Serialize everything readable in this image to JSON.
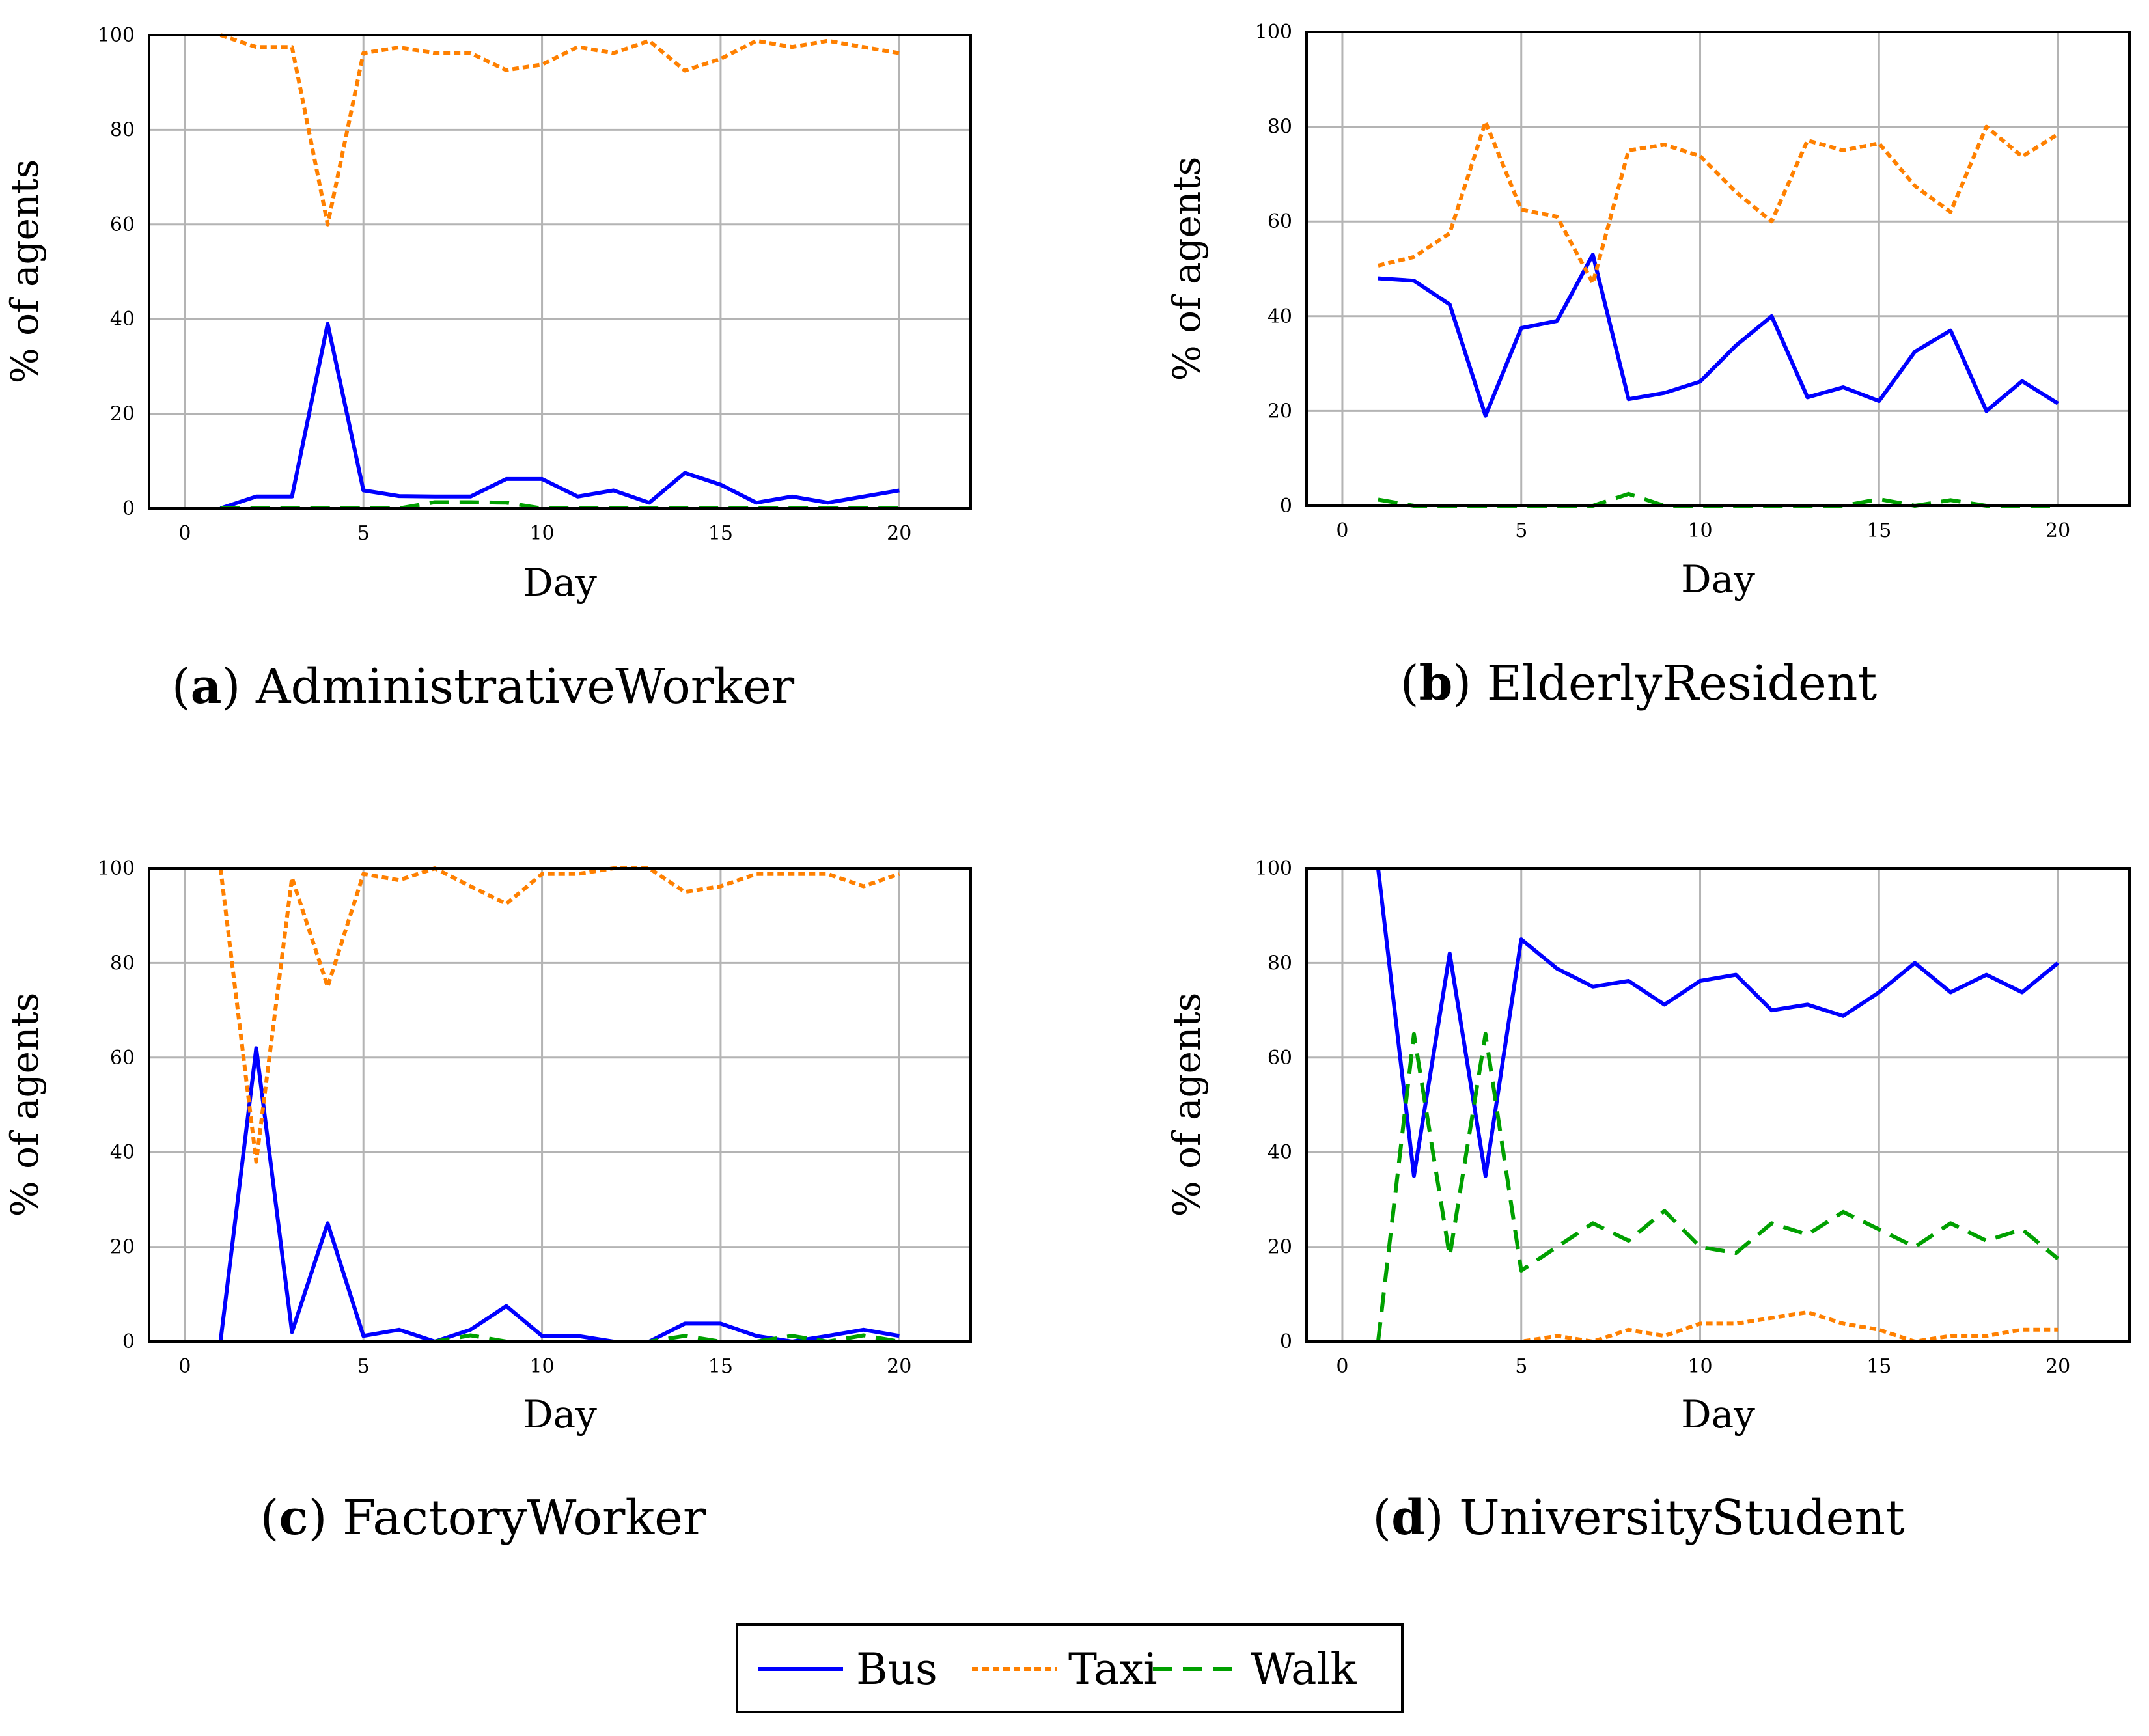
{
  "chart_data": [
    {
      "type": "line",
      "panel_letter": "a",
      "caption": "AdministrativeWorker",
      "xlabel": "Day",
      "ylabel": "% of agents",
      "xlim": [
        -1,
        22
      ],
      "ylim": [
        0,
        100
      ],
      "xticks": [
        "0",
        "5",
        "10",
        "15",
        "20"
      ],
      "yticks": [
        "0",
        "20",
        "40",
        "60",
        "80",
        "100"
      ],
      "grid": true,
      "x": [
        1,
        2,
        3,
        4,
        5,
        6,
        7,
        8,
        9,
        10,
        11,
        12,
        13,
        14,
        15,
        16,
        17,
        18,
        19,
        20
      ],
      "series": [
        {
          "name": "Bus",
          "values": [
            0,
            2.5,
            2.5,
            39,
            3.8,
            2.6,
            2.5,
            2.5,
            6.2,
            6.2,
            2.5,
            3.8,
            1.2,
            7.5,
            5,
            1.2,
            2.5,
            1.2,
            2.5,
            3.8
          ]
        },
        {
          "name": "Taxi",
          "values": [
            100,
            97.5,
            97.5,
            60,
            96.2,
            97.4,
            96.2,
            96.2,
            92.6,
            93.8,
            97.5,
            96.2,
            98.8,
            92.5,
            95,
            98.8,
            97.5,
            98.8,
            97.5,
            96.2
          ]
        },
        {
          "name": "Walk",
          "values": [
            0,
            0,
            0,
            0,
            0,
            0,
            1.3,
            1.3,
            1.2,
            0,
            0,
            0,
            0,
            0,
            0,
            0,
            0,
            0,
            0,
            0
          ]
        }
      ]
    },
    {
      "type": "line",
      "panel_letter": "b",
      "caption": "ElderlyResident",
      "xlabel": "Day",
      "ylabel": "% of agents",
      "xlim": [
        -1,
        22
      ],
      "ylim": [
        0,
        100
      ],
      "xticks": [
        "0",
        "5",
        "10",
        "15",
        "20"
      ],
      "yticks": [
        "0",
        "20",
        "40",
        "60",
        "80",
        "100"
      ],
      "grid": true,
      "x": [
        1,
        2,
        3,
        4,
        5,
        6,
        7,
        8,
        9,
        10,
        11,
        12,
        13,
        14,
        15,
        16,
        17,
        18,
        19,
        20
      ],
      "series": [
        {
          "name": "Bus",
          "values": [
            48,
            47.5,
            42.5,
            19,
            37.5,
            39,
            53,
            22.5,
            23.8,
            26.2,
            33.8,
            40,
            22.9,
            25,
            22.1,
            32.5,
            37,
            20,
            26.3,
            21.6
          ]
        },
        {
          "name": "Taxi",
          "values": [
            50.7,
            52.5,
            57.5,
            81,
            62.5,
            61,
            47,
            75,
            76.2,
            73.8,
            66.2,
            60,
            77.1,
            75,
            76.5,
            67.5,
            62,
            80,
            73.7,
            78.4
          ]
        },
        {
          "name": "Walk",
          "values": [
            1.3,
            0,
            0,
            0,
            0,
            0,
            0,
            2.5,
            0,
            0,
            0,
            0,
            0,
            0,
            1.4,
            0,
            1.2,
            0,
            0,
            0
          ]
        }
      ]
    },
    {
      "type": "line",
      "panel_letter": "c",
      "caption": "FactoryWorker",
      "xlabel": "Day",
      "ylabel": "% of agents",
      "xlim": [
        -1,
        22
      ],
      "ylim": [
        0,
        100
      ],
      "xticks": [
        "0",
        "5",
        "10",
        "15",
        "20"
      ],
      "yticks": [
        "0",
        "20",
        "40",
        "60",
        "80",
        "100"
      ],
      "grid": true,
      "x": [
        1,
        2,
        3,
        4,
        5,
        6,
        7,
        8,
        9,
        10,
        11,
        12,
        13,
        14,
        15,
        16,
        17,
        18,
        19,
        20
      ],
      "series": [
        {
          "name": "Bus",
          "values": [
            0,
            62,
            2,
            25,
            1.2,
            2.5,
            0,
            2.5,
            7.5,
            1.2,
            1.2,
            0,
            0,
            3.8,
            3.8,
            1.2,
            0,
            1.2,
            2.5,
            1.2
          ]
        },
        {
          "name": "Taxi",
          "values": [
            100,
            38,
            98,
            75,
            98.8,
            97.5,
            100,
            96.2,
            92.5,
            98.8,
            98.8,
            100,
            100,
            95,
            96.2,
            98.8,
            98.8,
            98.8,
            96.2,
            98.8
          ]
        },
        {
          "name": "Walk",
          "values": [
            0,
            0,
            0,
            0,
            0,
            0,
            0,
            1.3,
            0,
            0,
            0,
            0,
            0,
            1.2,
            0,
            0,
            1.2,
            0,
            1.3,
            0
          ]
        }
      ]
    },
    {
      "type": "line",
      "panel_letter": "d",
      "caption": "UniversityStudent",
      "xlabel": "Day",
      "ylabel": "% of agents",
      "xlim": [
        -1,
        22
      ],
      "ylim": [
        0,
        100
      ],
      "xticks": [
        "0",
        "5",
        "10",
        "15",
        "20"
      ],
      "yticks": [
        "0",
        "20",
        "40",
        "60",
        "80",
        "100"
      ],
      "grid": true,
      "x": [
        1,
        2,
        3,
        4,
        5,
        6,
        7,
        8,
        9,
        10,
        11,
        12,
        13,
        14,
        15,
        16,
        17,
        18,
        19,
        20
      ],
      "series": [
        {
          "name": "Bus",
          "values": [
            100,
            35,
            82,
            35,
            85,
            78.8,
            75,
            76.2,
            71.2,
            76.2,
            77.5,
            70,
            71.2,
            68.8,
            73.8,
            80,
            73.8,
            77.5,
            73.8,
            80
          ]
        },
        {
          "name": "Taxi",
          "values": [
            0,
            0,
            0,
            0,
            0,
            1.2,
            0,
            2.5,
            1.2,
            3.8,
            3.8,
            5,
            6.2,
            3.8,
            2.5,
            0,
            1.2,
            1.2,
            2.5,
            2.5
          ]
        },
        {
          "name": "Walk",
          "values": [
            0,
            65,
            18,
            65,
            15,
            20,
            25,
            21.3,
            27.6,
            20,
            18.7,
            25,
            22.6,
            27.4,
            23.7,
            20,
            25,
            21.3,
            23.7,
            17.5
          ]
        }
      ]
    }
  ],
  "legend": {
    "items": [
      {
        "name": "Bus",
        "color": "#0000ff",
        "style": "solid"
      },
      {
        "name": "Taxi",
        "color": "#ff8000",
        "style": "dotted"
      },
      {
        "name": "Walk",
        "color": "#00a000",
        "style": "dashed"
      }
    ]
  }
}
